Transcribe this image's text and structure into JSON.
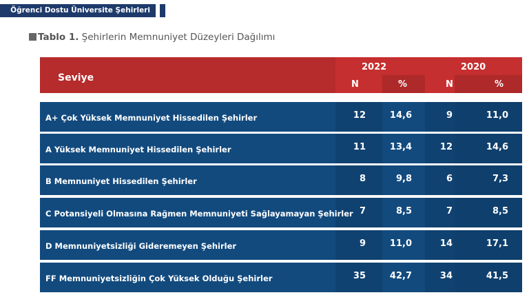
{
  "header_bar": {
    "text": "Öğrenci Dostu Üniversite Şehirleri"
  },
  "table_title": {
    "label": "Tablo 1.",
    "text": " Şehirlerin Memnuniyet Düzeyleri Dağılımı"
  },
  "columns": {
    "level": "Seviye",
    "year1": "2022",
    "year2": "2020",
    "n": "N",
    "pct": "%"
  },
  "colors": {
    "header_red": "#c62f2f",
    "row_blue": "#124a7e",
    "top_bar": "#1d3a6b"
  },
  "rows": [
    {
      "label": "A+ Çok Yüksek Memnuniyet Hissedilen Şehirler",
      "n2022": "12",
      "p2022": "14,6",
      "n2020": "9",
      "p2020": "11,0"
    },
    {
      "label": "A Yüksek Memnuniyet Hissedilen Şehirler",
      "n2022": "11",
      "p2022": "13,4",
      "n2020": "12",
      "p2020": "14,6"
    },
    {
      "label": "B Memnuniyet Hissedilen Şehirler",
      "n2022": "8",
      "p2022": "9,8",
      "n2020": "6",
      "p2020": "7,3"
    },
    {
      "label": "C Potansiyeli Olmasına Rağmen Memnuniyeti Sağlayamayan Şehirler",
      "n2022": "7",
      "p2022": "8,5",
      "n2020": "7",
      "p2020": "8,5"
    },
    {
      "label": "D Memnuniyetsizliği Gideremeyen Şehirler",
      "n2022": "9",
      "p2022": "11,0",
      "n2020": "14",
      "p2020": "17,1"
    },
    {
      "label": "FF Memnuniyetsizliğin Çok Yüksek Olduğu Şehirler",
      "n2022": "35",
      "p2022": "42,7",
      "n2020": "34",
      "p2020": "41,5"
    }
  ]
}
